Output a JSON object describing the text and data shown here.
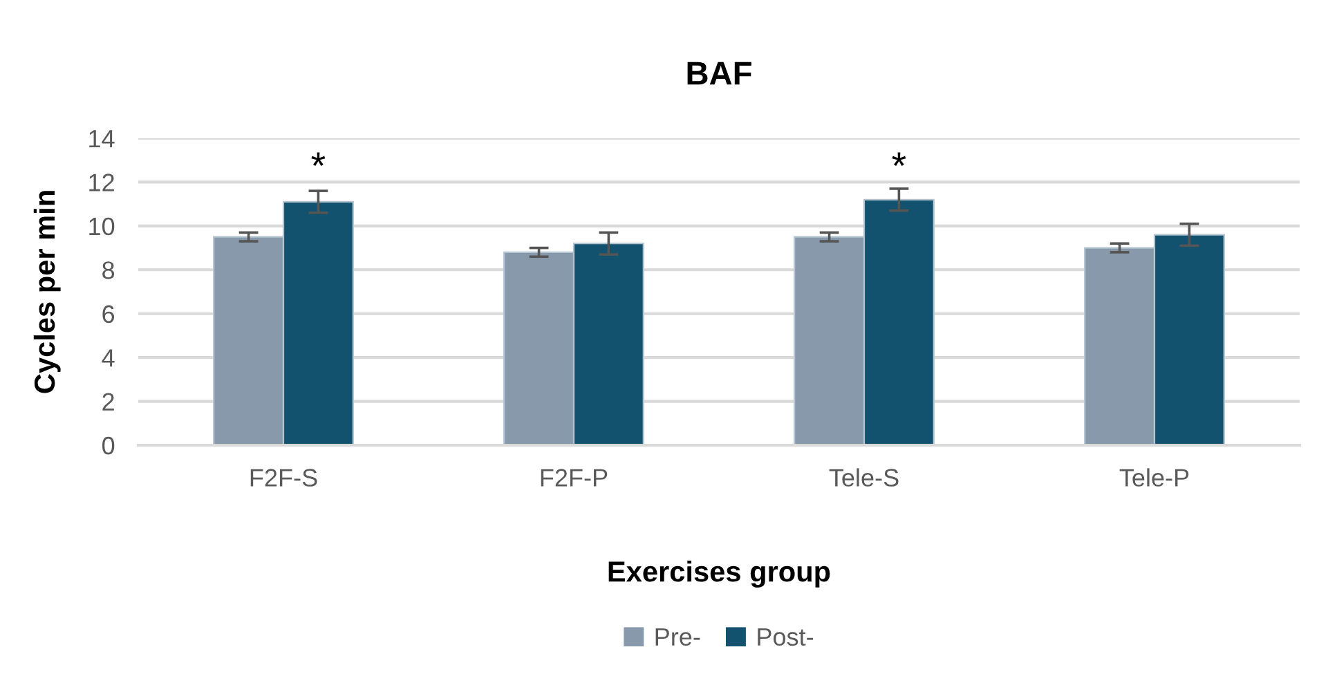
{
  "chart_data": {
    "type": "bar",
    "title": "BAF",
    "xlabel": "Exercises group",
    "ylabel": "Cycles per min",
    "categories": [
      "F2F-S",
      "F2F-P",
      "Tele-S",
      "Tele-P"
    ],
    "series": [
      {
        "name": "Pre-",
        "color": "#8799aa",
        "values": [
          9.5,
          8.8,
          9.5,
          9.0
        ],
        "errors": [
          0.2,
          0.2,
          0.2,
          0.2
        ]
      },
      {
        "name": "Post-",
        "color": "#12526e",
        "values": [
          11.1,
          9.2,
          11.2,
          9.6
        ],
        "errors": [
          0.5,
          0.5,
          0.5,
          0.5
        ]
      }
    ],
    "annotations": [
      "*",
      "*"
    ],
    "ylim": [
      0,
      14
    ],
    "yticks": [
      0,
      2,
      4,
      6,
      8,
      10,
      12,
      14
    ],
    "grid": "y",
    "legend": "bottom"
  }
}
